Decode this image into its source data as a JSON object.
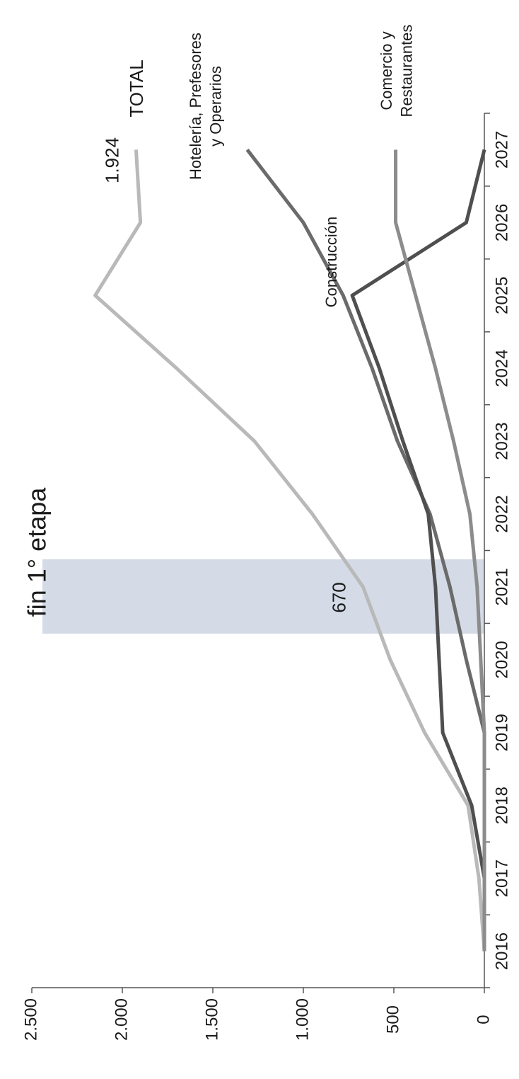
{
  "chart_data": {
    "type": "line",
    "title": "fin 1° etapa",
    "categories": [
      "2016",
      "2017",
      "2018",
      "2019",
      "2020",
      "2021",
      "2022",
      "2023",
      "2024",
      "2025",
      "2026",
      "2027"
    ],
    "series": [
      {
        "name": "TOTAL",
        "color": "#b9b9b9",
        "values": [
          0,
          30,
          90,
          330,
          520,
          670,
          950,
          1270,
          1700,
          2150,
          1900,
          1924
        ],
        "value_labels": [
          null,
          null,
          null,
          null,
          null,
          "670",
          null,
          null,
          null,
          null,
          null,
          "1.924"
        ]
      },
      {
        "name": "Hotelería, Prefesores y Operarios",
        "color": "#6b6b6b",
        "values": [
          0,
          0,
          0,
          0,
          100,
          190,
          300,
          480,
          620,
          780,
          1000,
          1310
        ]
      },
      {
        "name": "Construcción",
        "color": "#4f4f4f",
        "values": [
          0,
          0,
          70,
          230,
          250,
          270,
          310,
          450,
          580,
          730,
          100,
          0
        ]
      },
      {
        "name": "Comercio y Restaurantes",
        "color": "#8c8c8c",
        "values": [
          0,
          0,
          0,
          0,
          20,
          40,
          80,
          170,
          270,
          380,
          490,
          490
        ]
      }
    ],
    "ylim": [
      0,
      2500
    ],
    "yticks": [
      0,
      500,
      {
        "value": 1000,
        "label": "1.000"
      },
      {
        "value": 1500,
        "label": "1.500"
      },
      {
        "value": 2000,
        "label": "2.000"
      },
      {
        "value": 2500,
        "label": "2.500"
      }
    ],
    "grid": false
  }
}
